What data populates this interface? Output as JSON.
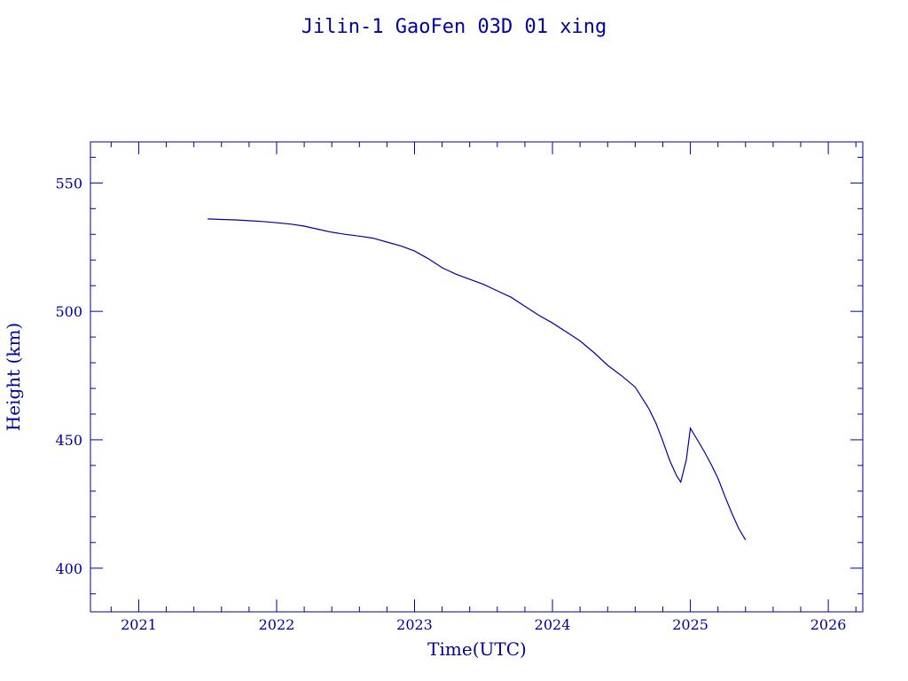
{
  "colors": {
    "axis": "#0000a0",
    "line": "#0000a0",
    "background": "#ffffff"
  },
  "chart_data": {
    "type": "line",
    "title": "Jilin-1 GaoFen 03D 01 xing",
    "xlabel": "Time(UTC)",
    "ylabel": "Height (km)",
    "xlim": [
      2020.65,
      2026.25
    ],
    "ylim": [
      383,
      566
    ],
    "xticks": [
      "2021",
      "2022",
      "2023",
      "2024",
      "2025",
      "2026"
    ],
    "yticks": [
      "400",
      "450",
      "500",
      "550"
    ],
    "grid": false,
    "legend": "none",
    "series": [
      {
        "x": [
          2021.5,
          2021.6,
          2021.7,
          2021.8,
          2021.9,
          2022.0,
          2022.1,
          2022.2,
          2022.3,
          2022.4,
          2022.5,
          2022.6,
          2022.7,
          2022.8,
          2022.9,
          2023.0,
          2023.1,
          2023.2,
          2023.3,
          2023.4,
          2023.5,
          2023.6,
          2023.7,
          2023.8,
          2023.9,
          2024.0,
          2024.1,
          2024.2,
          2024.3,
          2024.4,
          2024.5,
          2024.6,
          2024.7,
          2024.75,
          2024.8,
          2024.85,
          2024.9,
          2024.93,
          2024.97,
          2025.0,
          2025.05,
          2025.1,
          2025.15,
          2025.2,
          2025.25,
          2025.3,
          2025.35,
          2025.4
        ],
        "y": [
          536,
          535.8,
          535.6,
          535.3,
          535,
          534.5,
          534,
          533.2,
          532,
          530.8,
          530,
          529.3,
          528.5,
          527,
          525.5,
          523.5,
          520.5,
          517,
          514.5,
          512.5,
          510.5,
          508,
          505.5,
          502,
          498.5,
          495.5,
          492,
          488.5,
          484,
          479,
          475,
          470.5,
          462,
          456.5,
          449.5,
          442,
          436,
          433.5,
          442,
          454.5,
          450,
          445.5,
          440.5,
          435,
          428,
          421.5,
          415.5,
          411
        ]
      }
    ]
  }
}
